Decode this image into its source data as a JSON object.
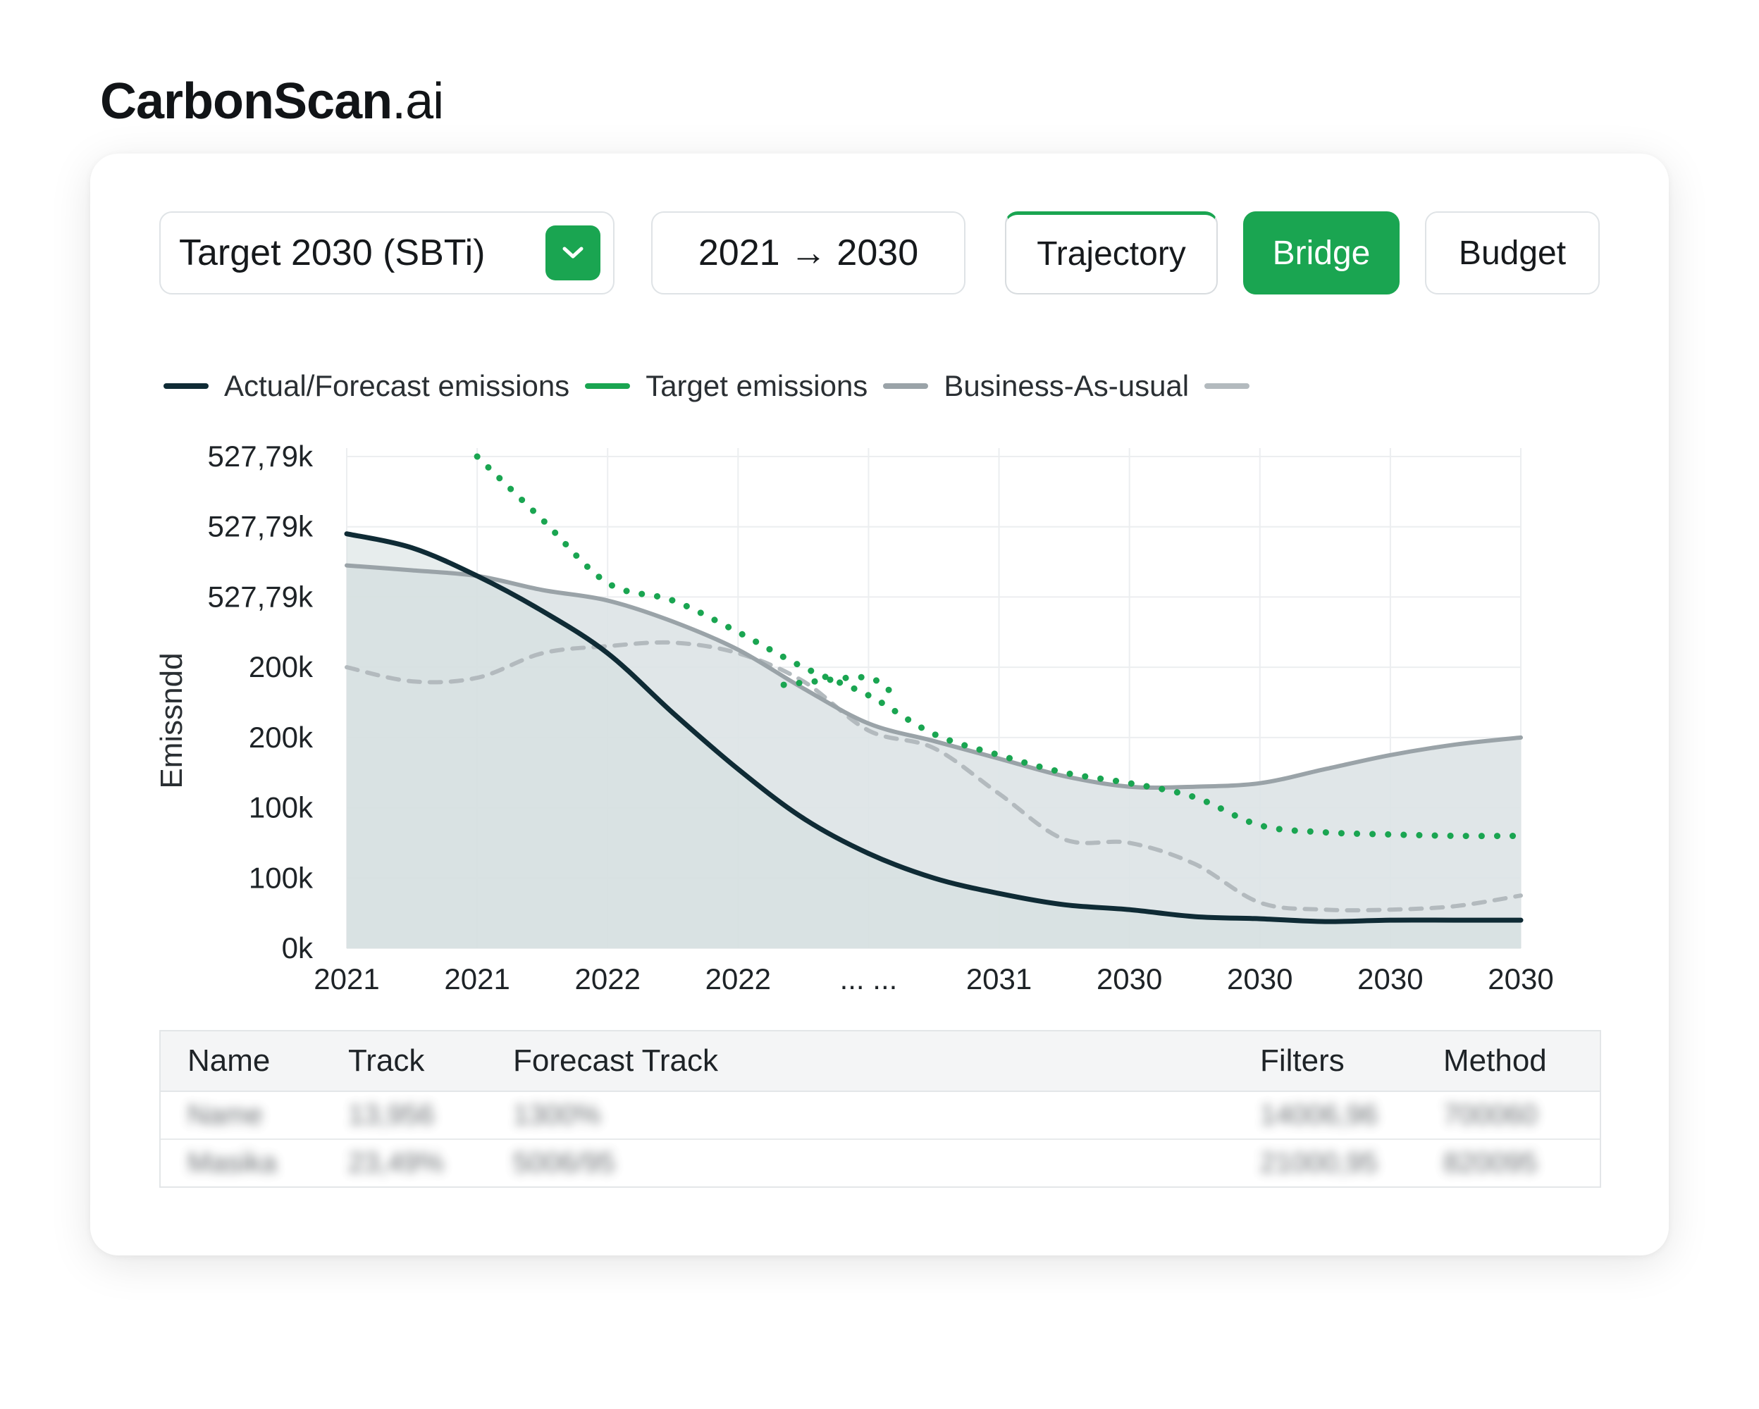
{
  "brand": {
    "name": "CarbonScan",
    "suffix": ".ai"
  },
  "controls": {
    "target_select": {
      "value": "Target 2030 (SBTi)",
      "icon": "chevron-down-icon"
    },
    "range": "2021 → 2030",
    "tabs": [
      {
        "label": "Trajectory",
        "state": "outlined"
      },
      {
        "label": "Bridge",
        "state": "active"
      },
      {
        "label": "Budget",
        "state": "default"
      }
    ]
  },
  "colors": {
    "accent": "#1aa551",
    "actual": "#0f2b35",
    "bau": "#9aa3a8",
    "dashed": "#b3babe",
    "area": "#dde3e5"
  },
  "legend": [
    {
      "label": "Actual/Forecast emissions",
      "color": "#0f2b35"
    },
    {
      "label": "Target emissions",
      "color": "#1aa551"
    },
    {
      "label": "Business-As-usual",
      "color": "#9aa3a8"
    },
    {
      "label": "",
      "color": "#b3babe"
    }
  ],
  "chart_data": {
    "type": "line",
    "ylabel": "Emissndd",
    "x_tick_labels": [
      "2021",
      "2021",
      "2022",
      "2022",
      "... ...",
      "2031",
      "2030",
      "2030",
      "2030",
      "2030"
    ],
    "y_tick_labels": [
      "0k",
      "100k",
      "100k",
      "200k",
      "200k",
      "527,79k",
      "527,79k",
      "527,79k"
    ],
    "ylim": [
      0,
      7
    ],
    "grid": true,
    "legend_position": "top-left",
    "x": [
      0,
      0.5,
      1,
      1.5,
      2,
      2.5,
      3,
      3.5,
      4,
      4.5,
      5,
      5.5,
      6,
      6.5,
      7,
      7.5,
      8,
      8.5,
      9
    ],
    "series": [
      {
        "name": "Actual/Forecast emissions",
        "style": "solid",
        "color": "#0f2b35",
        "values": [
          5.9,
          5.7,
          5.3,
          4.8,
          4.2,
          3.35,
          2.55,
          1.85,
          1.35,
          1.0,
          0.78,
          0.62,
          0.55,
          0.45,
          0.42,
          0.38,
          0.4,
          0.4,
          0.4
        ]
      },
      {
        "name": "Target emissions",
        "style": "dotted",
        "color": "#1aa551",
        "values": [
          null,
          null,
          7.0,
          6.1,
          5.2,
          4.95,
          4.5,
          4.0,
          3.6,
          3.05,
          2.75,
          2.5,
          2.35,
          2.15,
          1.75,
          1.65,
          1.62,
          1.6,
          1.6
        ]
      },
      {
        "name": "Business-As-usual",
        "style": "solid",
        "color": "#9aa3a8",
        "values": [
          5.45,
          5.38,
          5.3,
          5.1,
          4.95,
          4.65,
          4.25,
          3.7,
          3.2,
          2.95,
          2.7,
          2.45,
          2.3,
          2.3,
          2.35,
          2.55,
          2.75,
          2.9,
          3.0
        ]
      },
      {
        "name": "",
        "style": "dashed",
        "color": "#b3babe",
        "values": [
          4.0,
          3.8,
          3.85,
          4.2,
          4.3,
          4.35,
          4.2,
          3.8,
          3.1,
          2.85,
          2.2,
          1.55,
          1.5,
          1.2,
          0.65,
          0.55,
          0.55,
          0.6,
          0.75
        ]
      }
    ],
    "target_branch": {
      "x": [
        3.35,
        3.6,
        4.0,
        4.2
      ],
      "values": [
        3.75,
        3.8,
        3.85,
        3.6
      ]
    }
  },
  "table": {
    "columns": [
      "Name",
      "Track",
      "Forecast Track",
      "Filters",
      "Method"
    ],
    "rows": [
      [
        "Name",
        "13,956",
        "1300%",
        "14006,96",
        "700060"
      ],
      [
        "Masika",
        "23,49%",
        "5006/95",
        "21000,95",
        "820095"
      ]
    ]
  }
}
